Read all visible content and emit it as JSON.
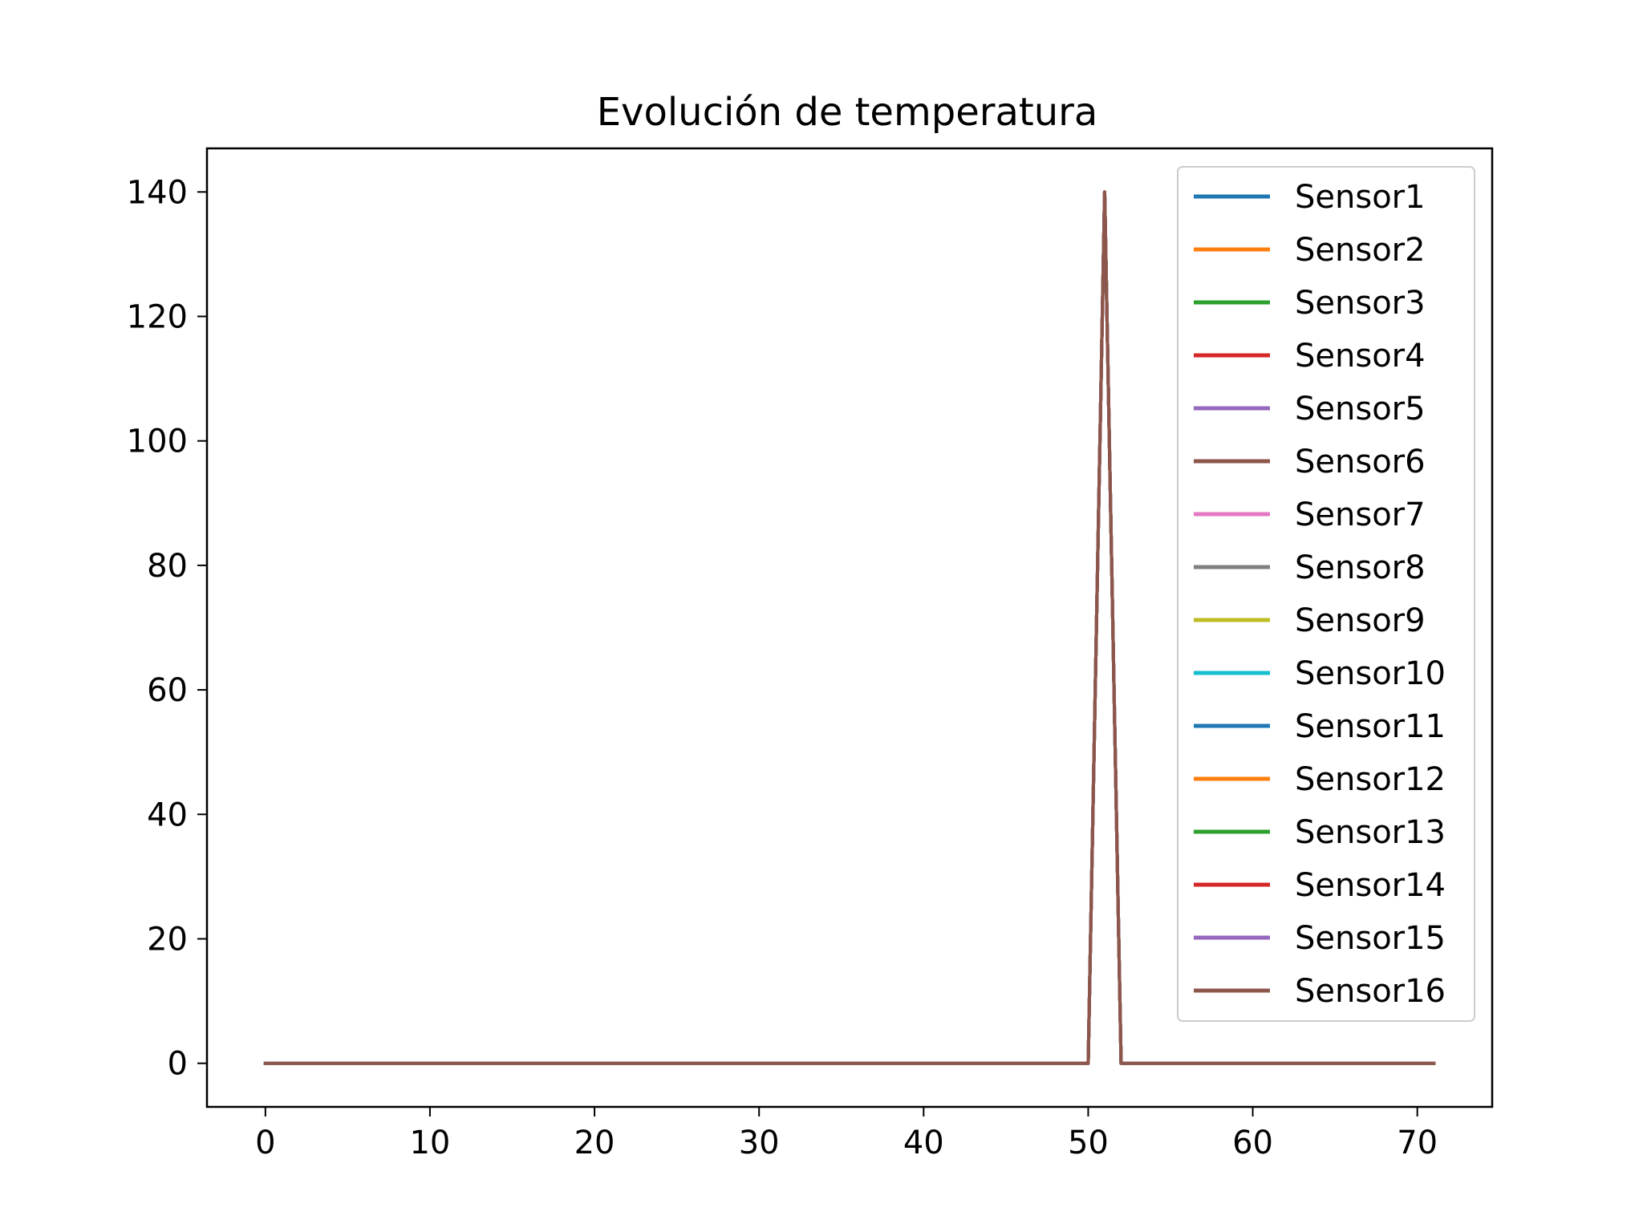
{
  "chart_data": {
    "type": "line",
    "title": "Evolución de temperatura",
    "xlabel": "",
    "ylabel": "",
    "xlim": [
      -3.55,
      74.55
    ],
    "ylim": [
      -7,
      147
    ],
    "xticks": [
      0,
      10,
      20,
      30,
      40,
      50,
      60,
      70
    ],
    "yticks": [
      0,
      20,
      40,
      60,
      80,
      100,
      120,
      140
    ],
    "grid": false,
    "legend_position": "top-right",
    "x": {
      "start": 0,
      "end": 71,
      "step": 1
    },
    "series": [
      {
        "name": "Sensor1",
        "color": "#1f77b4",
        "spike_x": 51,
        "spike_value": 140,
        "baseline": 0
      },
      {
        "name": "Sensor2",
        "color": "#ff7f0e",
        "spike_x": 51,
        "spike_value": 140,
        "baseline": 0
      },
      {
        "name": "Sensor3",
        "color": "#2ca02c",
        "spike_x": 51,
        "spike_value": 140,
        "baseline": 0
      },
      {
        "name": "Sensor4",
        "color": "#d62728",
        "spike_x": 51,
        "spike_value": 140,
        "baseline": 0
      },
      {
        "name": "Sensor5",
        "color": "#9467bd",
        "spike_x": 51,
        "spike_value": 140,
        "baseline": 0
      },
      {
        "name": "Sensor6",
        "color": "#8c564b",
        "spike_x": 51,
        "spike_value": 140,
        "baseline": 0
      },
      {
        "name": "Sensor7",
        "color": "#e377c2",
        "spike_x": 51,
        "spike_value": 140,
        "baseline": 0
      },
      {
        "name": "Sensor8",
        "color": "#7f7f7f",
        "spike_x": 51,
        "spike_value": 140,
        "baseline": 0
      },
      {
        "name": "Sensor9",
        "color": "#bcbd22",
        "spike_x": 51,
        "spike_value": 140,
        "baseline": 0
      },
      {
        "name": "Sensor10",
        "color": "#17becf",
        "spike_x": 51,
        "spike_value": 140,
        "baseline": 0
      },
      {
        "name": "Sensor11",
        "color": "#1f77b4",
        "spike_x": 51,
        "spike_value": 140,
        "baseline": 0
      },
      {
        "name": "Sensor12",
        "color": "#ff7f0e",
        "spike_x": 51,
        "spike_value": 140,
        "baseline": 0
      },
      {
        "name": "Sensor13",
        "color": "#2ca02c",
        "spike_x": 51,
        "spike_value": 140,
        "baseline": 0
      },
      {
        "name": "Sensor14",
        "color": "#d62728",
        "spike_x": 51,
        "spike_value": 140,
        "baseline": 0
      },
      {
        "name": "Sensor15",
        "color": "#9467bd",
        "spike_x": 51,
        "spike_value": 140,
        "baseline": 0
      },
      {
        "name": "Sensor16",
        "color": "#8c564b",
        "spike_x": 51,
        "spike_value": 140,
        "baseline": 0
      }
    ]
  }
}
